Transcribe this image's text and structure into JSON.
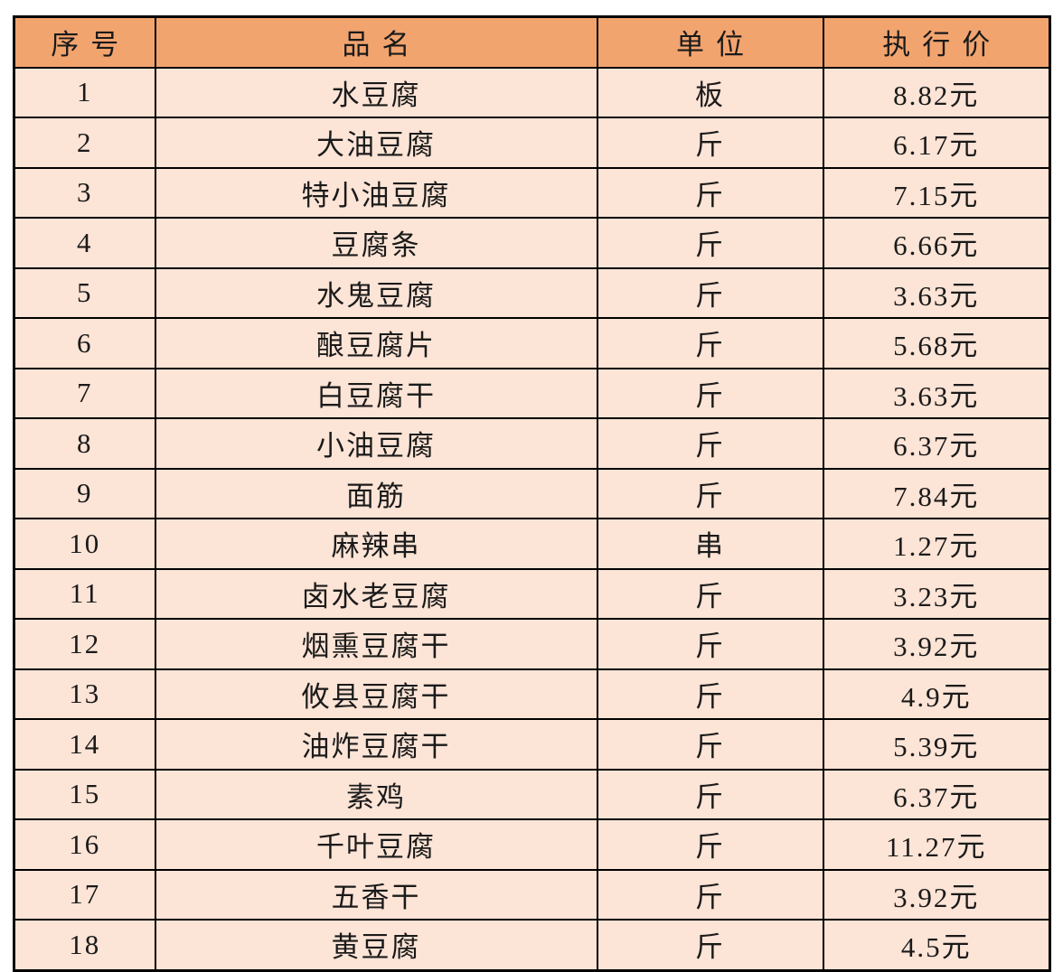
{
  "colors": {
    "page_bg": "#FFFFFF",
    "header_bg": "#F2A46F",
    "row_bg": "#FCE4D6",
    "border": "#000000",
    "text": "#1A1A1A"
  },
  "table": {
    "columns": [
      {
        "key": "index",
        "label": "序号"
      },
      {
        "key": "name",
        "label": "品名"
      },
      {
        "key": "unit",
        "label": "单位"
      },
      {
        "key": "price",
        "label": "执行价"
      }
    ],
    "rows": [
      {
        "index": "1",
        "name": "水豆腐",
        "unit": "板",
        "price": "8.82元"
      },
      {
        "index": "2",
        "name": "大油豆腐",
        "unit": "斤",
        "price": "6.17元"
      },
      {
        "index": "3",
        "name": "特小油豆腐",
        "unit": "斤",
        "price": "7.15元"
      },
      {
        "index": "4",
        "name": "豆腐条",
        "unit": "斤",
        "price": "6.66元"
      },
      {
        "index": "5",
        "name": "水鬼豆腐",
        "unit": "斤",
        "price": "3.63元"
      },
      {
        "index": "6",
        "name": "酿豆腐片",
        "unit": "斤",
        "price": "5.68元"
      },
      {
        "index": "7",
        "name": "白豆腐干",
        "unit": "斤",
        "price": "3.63元"
      },
      {
        "index": "8",
        "name": "小油豆腐",
        "unit": "斤",
        "price": "6.37元"
      },
      {
        "index": "9",
        "name": "面筋",
        "unit": "斤",
        "price": "7.84元"
      },
      {
        "index": "10",
        "name": "麻辣串",
        "unit": "串",
        "price": "1.27元"
      },
      {
        "index": "11",
        "name": "卤水老豆腐",
        "unit": "斤",
        "price": "3.23元"
      },
      {
        "index": "12",
        "name": "烟熏豆腐干",
        "unit": "斤",
        "price": "3.92元"
      },
      {
        "index": "13",
        "name": "攸县豆腐干",
        "unit": "斤",
        "price": "4.9元"
      },
      {
        "index": "14",
        "name": "油炸豆腐干",
        "unit": "斤",
        "price": "5.39元"
      },
      {
        "index": "15",
        "name": "素鸡",
        "unit": "斤",
        "price": "6.37元"
      },
      {
        "index": "16",
        "name": "千叶豆腐",
        "unit": "斤",
        "price": "11.27元"
      },
      {
        "index": "17",
        "name": "五香干",
        "unit": "斤",
        "price": "3.92元"
      },
      {
        "index": "18",
        "name": "黄豆腐",
        "unit": "斤",
        "price": "4.5元"
      }
    ]
  }
}
